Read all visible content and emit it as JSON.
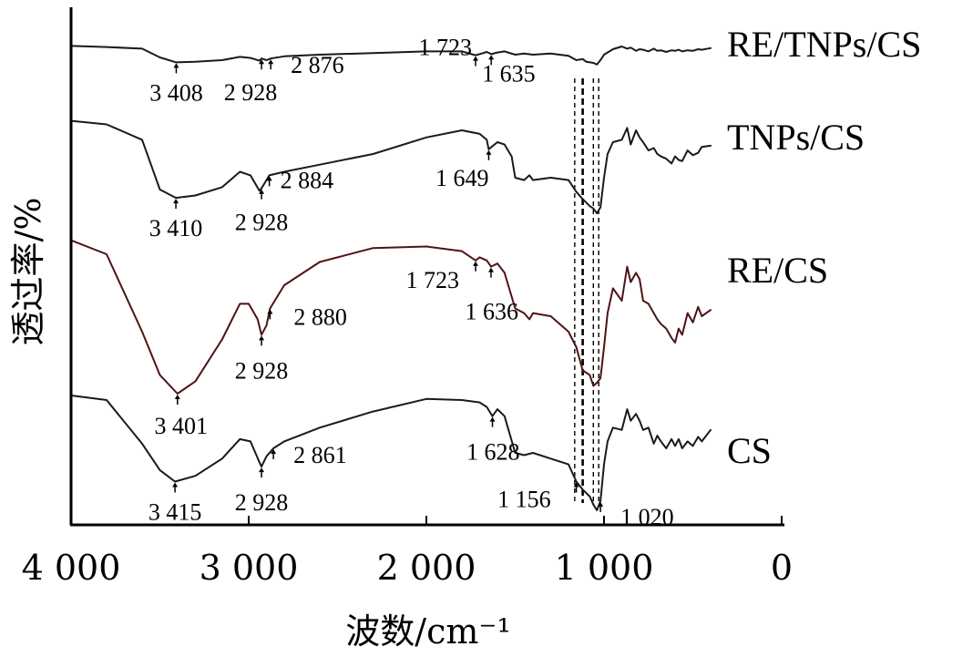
{
  "chart_data": {
    "type": "line",
    "title": "",
    "xlabel": "波数/cm⁻¹",
    "ylabel": "透过率/%",
    "xlim": [
      4000,
      0
    ],
    "x_reversed": true,
    "x_ticks": [
      4000,
      3000,
      2000,
      1000,
      0
    ],
    "x_tick_labels": [
      "4 000",
      "3 000",
      "2 000",
      "1 000",
      "0"
    ],
    "y_ticks_shown": false,
    "grid": false,
    "series_label_placement": "right",
    "guide_lines_cm": [
      1165,
      1120,
      1060,
      1030
    ],
    "series": [
      {
        "name": "RE/TNPs/CS",
        "color": "#1a1a1a",
        "x": [
          4000,
          3800,
          3600,
          3500,
          3408,
          3300,
          3150,
          3050,
          2990,
          2940,
          2928,
          2900,
          2876,
          2800,
          2600,
          2300,
          2000,
          1800,
          1723,
          1690,
          1660,
          1635,
          1600,
          1560,
          1500,
          1450,
          1400,
          1300,
          1200,
          1156,
          1120,
          1100,
          1060,
          1040,
          1020,
          1000,
          980,
          950,
          900,
          870,
          850,
          820,
          800,
          780,
          750,
          720,
          700,
          680,
          650,
          620,
          600,
          580,
          560,
          530,
          500,
          470,
          450,
          400
        ],
        "y": [
          4,
          6,
          9,
          25,
          34,
          33,
          30,
          24,
          26,
          31,
          27,
          30,
          27,
          23,
          20,
          17,
          14,
          14,
          21,
          18,
          15,
          19,
          16,
          14,
          20,
          18,
          20,
          18,
          22,
          30,
          28,
          33,
          35,
          38,
          30,
          20,
          16,
          10,
          5,
          9,
          7,
          13,
          10,
          11,
          14,
          9,
          13,
          12,
          15,
          12,
          13,
          11,
          14,
          12,
          13,
          10,
          11,
          8
        ]
      },
      {
        "name": "TNPs/CS",
        "color": "#1a1a1a",
        "x": [
          4000,
          3800,
          3600,
          3500,
          3410,
          3300,
          3150,
          3050,
          2990,
          2940,
          2928,
          2900,
          2884,
          2800,
          2600,
          2300,
          2000,
          1800,
          1700,
          1660,
          1649,
          1600,
          1560,
          1520,
          1500,
          1450,
          1420,
          1400,
          1300,
          1200,
          1156,
          1120,
          1080,
          1060,
          1040,
          1020,
          1000,
          980,
          950,
          900,
          870,
          850,
          820,
          800,
          780,
          750,
          720,
          700,
          680,
          650,
          620,
          600,
          580,
          560,
          530,
          500,
          470,
          450,
          400
        ],
        "y": [
          2,
          5,
          18,
          60,
          67,
          65,
          58,
          45,
          48,
          61,
          59,
          52,
          48,
          45,
          39,
          30,
          16,
          10,
          13,
          18,
          26,
          20,
          22,
          32,
          50,
          52,
          48,
          52,
          50,
          52,
          62,
          68,
          74,
          76,
          80,
          75,
          50,
          30,
          20,
          18,
          8,
          22,
          10,
          16,
          20,
          27,
          25,
          30,
          32,
          34,
          38,
          32,
          35,
          36,
          27,
          31,
          29,
          24,
          23
        ]
      },
      {
        "name": "RE/CS",
        "color": "#4d1414",
        "x": [
          4000,
          3800,
          3600,
          3500,
          3401,
          3300,
          3150,
          3050,
          3000,
          2950,
          2928,
          2900,
          2880,
          2800,
          2600,
          2300,
          2000,
          1800,
          1723,
          1700,
          1660,
          1636,
          1600,
          1560,
          1500,
          1450,
          1420,
          1400,
          1300,
          1200,
          1156,
          1120,
          1080,
          1060,
          1040,
          1020,
          1000,
          980,
          950,
          900,
          870,
          850,
          820,
          800,
          780,
          750,
          720,
          700,
          680,
          650,
          620,
          600,
          580,
          560,
          530,
          500,
          470,
          450,
          400
        ],
        "y": [
          1,
          10,
          60,
          88,
          100,
          92,
          65,
          42,
          42,
          52,
          62,
          56,
          45,
          30,
          15,
          6,
          5,
          8,
          14,
          12,
          14,
          18,
          16,
          22,
          45,
          48,
          52,
          48,
          50,
          60,
          70,
          85,
          88,
          95,
          93,
          90,
          70,
          48,
          32,
          40,
          18,
          28,
          22,
          26,
          40,
          42,
          48,
          52,
          55,
          58,
          64,
          67,
          58,
          62,
          48,
          54,
          44,
          50,
          46
        ]
      },
      {
        "name": "CS",
        "color": "#1a1a1a",
        "x": [
          4000,
          3800,
          3600,
          3500,
          3415,
          3300,
          3150,
          3050,
          2990,
          2940,
          2928,
          2900,
          2861,
          2800,
          2600,
          2300,
          2000,
          1800,
          1700,
          1660,
          1628,
          1600,
          1560,
          1500,
          1450,
          1400,
          1300,
          1200,
          1156,
          1120,
          1080,
          1060,
          1040,
          1020,
          1000,
          980,
          950,
          900,
          870,
          850,
          820,
          800,
          780,
          750,
          720,
          700,
          680,
          650,
          620,
          600,
          580,
          560,
          530,
          500,
          470,
          450,
          400
        ],
        "y": [
          0,
          4,
          42,
          65,
          75,
          70,
          55,
          38,
          40,
          58,
          62,
          53,
          46,
          40,
          28,
          14,
          3,
          4,
          6,
          10,
          18,
          12,
          18,
          50,
          52,
          50,
          55,
          60,
          75,
          82,
          88,
          95,
          100,
          92,
          60,
          40,
          28,
          30,
          12,
          22,
          16,
          22,
          30,
          28,
          42,
          35,
          40,
          46,
          38,
          44,
          38,
          46,
          40,
          44,
          36,
          40,
          30
        ]
      }
    ],
    "annotations": [
      {
        "series": "RE/TNPs/CS",
        "wavenumber": 3408,
        "text": "3 408"
      },
      {
        "series": "RE/TNPs/CS",
        "wavenumber": 2928,
        "text": "2 928"
      },
      {
        "series": "RE/TNPs/CS",
        "wavenumber": 2876,
        "text": "2 876"
      },
      {
        "series": "RE/TNPs/CS",
        "wavenumber": 1723,
        "text": "1 723"
      },
      {
        "series": "RE/TNPs/CS",
        "wavenumber": 1635,
        "text": "1 635"
      },
      {
        "series": "TNPs/CS",
        "wavenumber": 3410,
        "text": "3 410"
      },
      {
        "series": "TNPs/CS",
        "wavenumber": 2928,
        "text": "2 928"
      },
      {
        "series": "TNPs/CS",
        "wavenumber": 2884,
        "text": "2 884"
      },
      {
        "series": "TNPs/CS",
        "wavenumber": 1649,
        "text": "1 649"
      },
      {
        "series": "RE/CS",
        "wavenumber": 3401,
        "text": "3 401"
      },
      {
        "series": "RE/CS",
        "wavenumber": 2928,
        "text": "2 928"
      },
      {
        "series": "RE/CS",
        "wavenumber": 2880,
        "text": "2 880"
      },
      {
        "series": "RE/CS",
        "wavenumber": 1723,
        "text": "1 723"
      },
      {
        "series": "RE/CS",
        "wavenumber": 1636,
        "text": "1 636"
      },
      {
        "series": "CS",
        "wavenumber": 3415,
        "text": "3 415"
      },
      {
        "series": "CS",
        "wavenumber": 2928,
        "text": "2 928"
      },
      {
        "series": "CS",
        "wavenumber": 2861,
        "text": "2 861"
      },
      {
        "series": "CS",
        "wavenumber": 1628,
        "text": "1 628"
      },
      {
        "series": "CS",
        "wavenumber": 1156,
        "text": "1 156"
      },
      {
        "series": "CS",
        "wavenumber": 1020,
        "text": "1 020"
      }
    ]
  }
}
